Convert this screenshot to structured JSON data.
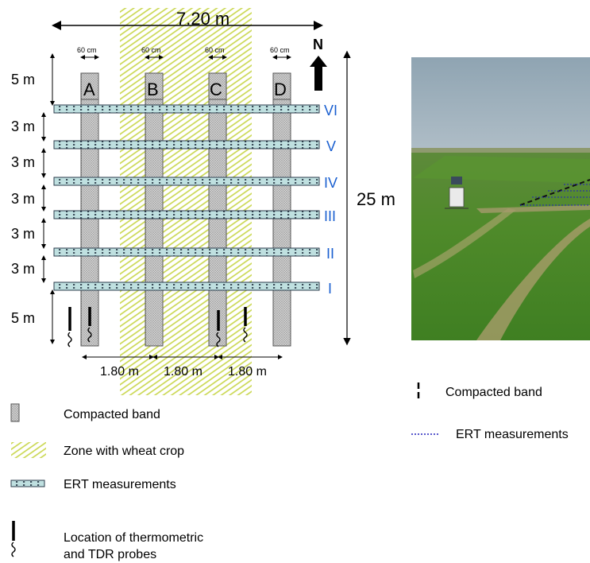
{
  "diagram": {
    "total_width_label": "7.20 m",
    "total_length_label": "25 m",
    "north_label": "N",
    "band_width_label": "60 cm",
    "column_labels": [
      "A",
      "B",
      "C",
      "D"
    ],
    "row_labels": [
      "VI",
      "V",
      "IV",
      "III",
      "II",
      "I"
    ],
    "left_spacing_labels": [
      "5 m",
      "3 m",
      "3 m",
      "3 m",
      "3 m",
      "3 m",
      "5 m"
    ],
    "bottom_spacing_labels": [
      "1.80 m",
      "1.80 m",
      "1.80 m"
    ]
  },
  "legend": {
    "compacted_band": "Compacted band",
    "wheat_zone": "Zone with wheat crop",
    "ert": "ERT measurements",
    "probes_line1": "Location of thermometric",
    "probes_line2": "and TDR probes"
  },
  "photo_legend": {
    "compacted_band": "Compacted band",
    "ert": "ERT measurements"
  },
  "colors": {
    "wheat_hatch": "#c8d64a",
    "band_fill": "#c0c0c0",
    "ert_fill": "#bfe0e0",
    "label_blue": "#1a5fd0",
    "ert_dots": "#2222bb"
  }
}
